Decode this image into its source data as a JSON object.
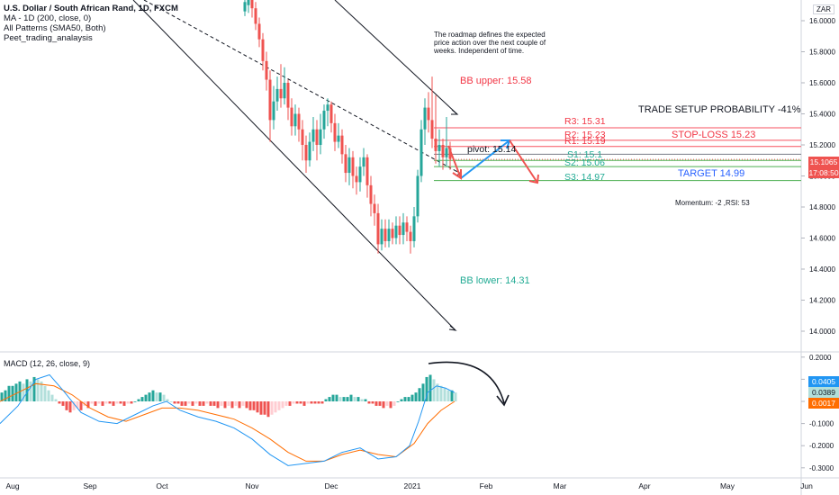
{
  "header": {
    "symbol": "U.S. Dollar / South African Rand, 1D, FXCM",
    "studies": [
      "MA - 1D (200, close, 0)",
      "All Patterns (SMA50, Both)",
      "Peet_trading_analaysis"
    ]
  },
  "currency_badge": "ZAR",
  "note": "The roadmap defines the expected price action over the next couple of weeks. Independent of time.",
  "annotations": {
    "bb_upper": "BB upper: 15.58",
    "bb_lower": "BB lower: 14.31",
    "trade_setup": "TRADE SETUP PROBABILITY -41%",
    "r3": "R3: 15.31",
    "r2": "R2: 15.23",
    "r1": "R1: 15.19",
    "stop_loss": "STOP-LOSS 15.23",
    "pivot": "pivot: 15.14",
    "s1": "S1: 15.1",
    "s2": "S2: 15.06",
    "s3": "S3: 14.97",
    "target": "TARGET 14.99",
    "momentum": "Momentum: -2 ,RSI: 53"
  },
  "price_badges": {
    "last": "15.1065",
    "countdown": "17:08:50"
  },
  "macd": {
    "title": "MACD (12, 26, close, 9)",
    "badges": [
      "0.0405",
      "0.0389",
      "0.0017"
    ]
  },
  "colors": {
    "up": "#26a69a",
    "down": "#ef5350",
    "up_light": "#b2dfdb",
    "down_light": "#ffcdd2",
    "macd_line": "#2196f3",
    "signal_line": "#ff6d00",
    "red_text": "#f23645",
    "green_text": "#22ab94",
    "blue_text": "#2962ff",
    "line_red": "#f7525f",
    "line_green": "#4caf50"
  },
  "chart_data": {
    "type": "candlestick",
    "price_axis": {
      "ticks": [
        "16.0000",
        "15.8000",
        "15.6000",
        "15.4000",
        "15.2000",
        "15.0000",
        "14.8000",
        "14.6000",
        "14.4000",
        "14.2000",
        "14.0000"
      ]
    },
    "time_axis": {
      "ticks": [
        "Aug",
        "Sep",
        "Oct",
        "Nov",
        "Dec",
        "2021",
        "Feb",
        "Mar",
        "Apr",
        "May",
        "Jun"
      ]
    },
    "macd_axis": {
      "ticks": [
        "0.2000",
        "0.1000",
        "0.0000",
        "-0.1000",
        "-0.2000",
        "-0.3000"
      ]
    },
    "levels": [
      {
        "name": "R3",
        "price": 15.31
      },
      {
        "name": "R2",
        "price": 15.23
      },
      {
        "name": "R1",
        "price": 15.19
      },
      {
        "name": "pivot",
        "price": 15.14
      },
      {
        "name": "S1",
        "price": 15.1
      },
      {
        "name": "S2",
        "price": 15.06
      },
      {
        "name": "S3",
        "price": 14.97
      }
    ],
    "candles": [
      {
        "x": 272,
        "o": 16.06,
        "c": 16.12,
        "h": 16.15,
        "l": 16.03
      },
      {
        "x": 276,
        "o": 16.1,
        "c": 16.14,
        "h": 16.18,
        "l": 16.05
      },
      {
        "x": 280,
        "o": 16.14,
        "c": 16.08,
        "h": 16.2,
        "l": 16.02
      },
      {
        "x": 284,
        "o": 16.08,
        "c": 15.98,
        "h": 16.12,
        "l": 15.94
      },
      {
        "x": 288,
        "o": 15.98,
        "c": 15.88,
        "h": 16.02,
        "l": 15.83
      },
      {
        "x": 292,
        "o": 15.88,
        "c": 15.74,
        "h": 15.92,
        "l": 15.68
      },
      {
        "x": 296,
        "o": 15.74,
        "c": 15.62,
        "h": 15.8,
        "l": 15.55
      },
      {
        "x": 300,
        "o": 15.62,
        "c": 15.36,
        "h": 15.68,
        "l": 15.22
      },
      {
        "x": 304,
        "o": 15.36,
        "c": 15.48,
        "h": 15.58,
        "l": 15.3
      },
      {
        "x": 308,
        "o": 15.48,
        "c": 15.56,
        "h": 15.64,
        "l": 15.42
      },
      {
        "x": 312,
        "o": 15.56,
        "c": 15.5,
        "h": 15.72,
        "l": 15.44
      },
      {
        "x": 316,
        "o": 15.5,
        "c": 15.6,
        "h": 15.7,
        "l": 15.46
      },
      {
        "x": 320,
        "o": 15.6,
        "c": 15.44,
        "h": 15.62,
        "l": 15.36
      },
      {
        "x": 324,
        "o": 15.44,
        "c": 15.32,
        "h": 15.5,
        "l": 15.26
      },
      {
        "x": 328,
        "o": 15.32,
        "c": 15.4,
        "h": 15.46,
        "l": 15.26
      },
      {
        "x": 332,
        "o": 15.4,
        "c": 15.3,
        "h": 15.44,
        "l": 15.22
      },
      {
        "x": 336,
        "o": 15.3,
        "c": 15.2,
        "h": 15.36,
        "l": 15.1
      },
      {
        "x": 340,
        "o": 15.2,
        "c": 15.1,
        "h": 15.26,
        "l": 15.02
      },
      {
        "x": 344,
        "o": 15.1,
        "c": 15.22,
        "h": 15.28,
        "l": 15.06
      },
      {
        "x": 348,
        "o": 15.22,
        "c": 15.3,
        "h": 15.38,
        "l": 15.16
      },
      {
        "x": 352,
        "o": 15.3,
        "c": 15.2,
        "h": 15.36,
        "l": 15.1
      },
      {
        "x": 356,
        "o": 15.2,
        "c": 15.3,
        "h": 15.4,
        "l": 15.14
      },
      {
        "x": 360,
        "o": 15.3,
        "c": 15.42,
        "h": 15.46,
        "l": 15.24
      },
      {
        "x": 364,
        "o": 15.42,
        "c": 15.46,
        "h": 15.5,
        "l": 15.32
      },
      {
        "x": 368,
        "o": 15.46,
        "c": 15.34,
        "h": 15.48,
        "l": 15.28
      },
      {
        "x": 372,
        "o": 15.34,
        "c": 15.22,
        "h": 15.4,
        "l": 15.16
      },
      {
        "x": 376,
        "o": 15.22,
        "c": 15.26,
        "h": 15.34,
        "l": 15.18
      },
      {
        "x": 380,
        "o": 15.26,
        "c": 15.14,
        "h": 15.3,
        "l": 15.08
      },
      {
        "x": 384,
        "o": 15.14,
        "c": 15.02,
        "h": 15.2,
        "l": 14.96
      },
      {
        "x": 388,
        "o": 15.02,
        "c": 15.12,
        "h": 15.18,
        "l": 14.94
      },
      {
        "x": 392,
        "o": 15.12,
        "c": 15.0,
        "h": 15.16,
        "l": 14.92
      },
      {
        "x": 396,
        "o": 15.0,
        "c": 14.96,
        "h": 15.06,
        "l": 14.88
      },
      {
        "x": 400,
        "o": 14.96,
        "c": 15.06,
        "h": 15.12,
        "l": 14.9
      },
      {
        "x": 404,
        "o": 15.06,
        "c": 15.12,
        "h": 15.18,
        "l": 15.0
      },
      {
        "x": 408,
        "o": 15.12,
        "c": 14.94,
        "h": 15.14,
        "l": 14.86
      },
      {
        "x": 412,
        "o": 14.94,
        "c": 14.82,
        "h": 15.0,
        "l": 14.74
      },
      {
        "x": 416,
        "o": 14.82,
        "c": 14.76,
        "h": 14.88,
        "l": 14.68
      },
      {
        "x": 420,
        "o": 14.76,
        "c": 14.56,
        "h": 14.82,
        "l": 14.5
      },
      {
        "x": 424,
        "o": 14.56,
        "c": 14.66,
        "h": 14.72,
        "l": 14.52
      },
      {
        "x": 428,
        "o": 14.66,
        "c": 14.58,
        "h": 14.72,
        "l": 14.54
      },
      {
        "x": 432,
        "o": 14.58,
        "c": 14.66,
        "h": 14.72,
        "l": 14.54
      },
      {
        "x": 436,
        "o": 14.66,
        "c": 14.6,
        "h": 14.7,
        "l": 14.56
      },
      {
        "x": 440,
        "o": 14.6,
        "c": 14.68,
        "h": 14.74,
        "l": 14.56
      },
      {
        "x": 444,
        "o": 14.68,
        "c": 14.62,
        "h": 14.74,
        "l": 14.56
      },
      {
        "x": 448,
        "o": 14.62,
        "c": 14.7,
        "h": 14.76,
        "l": 14.56
      },
      {
        "x": 452,
        "o": 14.7,
        "c": 14.64,
        "h": 14.74,
        "l": 14.58
      },
      {
        "x": 456,
        "o": 14.64,
        "c": 14.58,
        "h": 14.68,
        "l": 14.5
      },
      {
        "x": 460,
        "o": 14.58,
        "c": 14.74,
        "h": 14.8,
        "l": 14.54
      },
      {
        "x": 464,
        "o": 14.74,
        "c": 15.0,
        "h": 15.04,
        "l": 14.7
      },
      {
        "x": 468,
        "o": 15.0,
        "c": 15.3,
        "h": 15.36,
        "l": 14.96
      },
      {
        "x": 472,
        "o": 15.3,
        "c": 15.44,
        "h": 15.5,
        "l": 15.2
      },
      {
        "x": 476,
        "o": 15.44,
        "c": 15.36,
        "h": 15.54,
        "l": 15.28
      },
      {
        "x": 480,
        "o": 15.36,
        "c": 15.24,
        "h": 15.64,
        "l": 15.18
      },
      {
        "x": 484,
        "o": 15.24,
        "c": 15.16,
        "h": 15.52,
        "l": 15.08
      },
      {
        "x": 488,
        "o": 15.16,
        "c": 15.2,
        "h": 15.3,
        "l": 15.06
      },
      {
        "x": 492,
        "o": 15.2,
        "c": 15.12,
        "h": 15.24,
        "l": 15.04
      },
      {
        "x": 496,
        "o": 15.12,
        "c": 15.18,
        "h": 15.38,
        "l": 15.06
      },
      {
        "x": 500,
        "o": 15.18,
        "c": 15.11,
        "h": 15.22,
        "l": 15.04
      }
    ],
    "macd_hist": [
      {
        "x": 2,
        "v": 0.04
      },
      {
        "x": 6,
        "v": 0.05
      },
      {
        "x": 10,
        "v": 0.07
      },
      {
        "x": 14,
        "v": 0.07
      },
      {
        "x": 18,
        "v": 0.08
      },
      {
        "x": 22,
        "v": 0.09
      },
      {
        "x": 26,
        "v": 0.08
      },
      {
        "x": 30,
        "v": 0.1
      },
      {
        "x": 34,
        "v": 0.09
      },
      {
        "x": 38,
        "v": 0.11
      },
      {
        "x": 42,
        "v": 0.1
      },
      {
        "x": 46,
        "v": 0.09
      },
      {
        "x": 50,
        "v": 0.07
      },
      {
        "x": 54,
        "v": 0.05
      },
      {
        "x": 58,
        "v": 0.03
      },
      {
        "x": 62,
        "v": 0.01
      },
      {
        "x": 66,
        "v": -0.01
      },
      {
        "x": 70,
        "v": -0.02
      },
      {
        "x": 74,
        "v": -0.04
      },
      {
        "x": 78,
        "v": -0.05
      },
      {
        "x": 82,
        "v": -0.04
      },
      {
        "x": 86,
        "v": -0.03
      },
      {
        "x": 90,
        "v": -0.04
      },
      {
        "x": 94,
        "v": -0.02
      },
      {
        "x": 98,
        "v": -0.03
      },
      {
        "x": 102,
        "v": -0.01
      },
      {
        "x": 106,
        "v": -0.02
      },
      {
        "x": 110,
        "v": -0.01
      },
      {
        "x": 114,
        "v": -0.02
      },
      {
        "x": 118,
        "v": -0.01
      },
      {
        "x": 122,
        "v": -0.01
      },
      {
        "x": 126,
        "v": -0.02
      },
      {
        "x": 130,
        "v": -0.01
      },
      {
        "x": 134,
        "v": -0.01
      },
      {
        "x": 138,
        "v": -0.02
      },
      {
        "x": 142,
        "v": -0.01
      },
      {
        "x": 146,
        "v": -0.01
      },
      {
        "x": 150,
        "v": 0.0
      },
      {
        "x": 154,
        "v": 0.01
      },
      {
        "x": 158,
        "v": 0.02
      },
      {
        "x": 162,
        "v": 0.03
      },
      {
        "x": 166,
        "v": 0.04
      },
      {
        "x": 170,
        "v": 0.05
      },
      {
        "x": 174,
        "v": 0.04
      },
      {
        "x": 178,
        "v": 0.04
      },
      {
        "x": 182,
        "v": 0.03
      },
      {
        "x": 186,
        "v": 0.01
      },
      {
        "x": 190,
        "v": 0.0
      },
      {
        "x": 194,
        "v": -0.01
      },
      {
        "x": 198,
        "v": -0.01
      },
      {
        "x": 202,
        "v": -0.02
      },
      {
        "x": 206,
        "v": -0.02
      },
      {
        "x": 210,
        "v": -0.01
      },
      {
        "x": 214,
        "v": -0.02
      },
      {
        "x": 218,
        "v": -0.01
      },
      {
        "x": 222,
        "v": -0.02
      },
      {
        "x": 226,
        "v": -0.02
      },
      {
        "x": 230,
        "v": -0.01
      },
      {
        "x": 234,
        "v": -0.02
      },
      {
        "x": 238,
        "v": -0.02
      },
      {
        "x": 242,
        "v": -0.03
      },
      {
        "x": 246,
        "v": -0.02
      },
      {
        "x": 250,
        "v": -0.03
      },
      {
        "x": 254,
        "v": -0.02
      },
      {
        "x": 258,
        "v": -0.03
      },
      {
        "x": 262,
        "v": -0.02
      },
      {
        "x": 266,
        "v": -0.03
      },
      {
        "x": 270,
        "v": -0.02
      },
      {
        "x": 274,
        "v": -0.03
      },
      {
        "x": 278,
        "v": -0.04
      },
      {
        "x": 282,
        "v": -0.04
      },
      {
        "x": 286,
        "v": -0.05
      },
      {
        "x": 290,
        "v": -0.06
      },
      {
        "x": 294,
        "v": -0.06
      },
      {
        "x": 298,
        "v": -0.07
      },
      {
        "x": 302,
        "v": -0.06
      },
      {
        "x": 306,
        "v": -0.05
      },
      {
        "x": 310,
        "v": -0.04
      },
      {
        "x": 314,
        "v": -0.03
      },
      {
        "x": 318,
        "v": -0.02
      },
      {
        "x": 322,
        "v": -0.02
      },
      {
        "x": 326,
        "v": -0.01
      },
      {
        "x": 330,
        "v": -0.01
      },
      {
        "x": 334,
        "v": -0.01
      },
      {
        "x": 338,
        "v": -0.02
      },
      {
        "x": 342,
        "v": -0.01
      },
      {
        "x": 346,
        "v": -0.01
      },
      {
        "x": 350,
        "v": -0.01
      },
      {
        "x": 354,
        "v": -0.01
      },
      {
        "x": 358,
        "v": -0.01
      },
      {
        "x": 362,
        "v": 0.01
      },
      {
        "x": 366,
        "v": 0.02
      },
      {
        "x": 370,
        "v": 0.03
      },
      {
        "x": 374,
        "v": 0.03
      },
      {
        "x": 378,
        "v": 0.02
      },
      {
        "x": 382,
        "v": 0.02
      },
      {
        "x": 386,
        "v": 0.02
      },
      {
        "x": 390,
        "v": 0.03
      },
      {
        "x": 394,
        "v": 0.02
      },
      {
        "x": 398,
        "v": 0.02
      },
      {
        "x": 402,
        "v": 0.01
      },
      {
        "x": 406,
        "v": 0.01
      },
      {
        "x": 410,
        "v": -0.01
      },
      {
        "x": 414,
        "v": -0.01
      },
      {
        "x": 418,
        "v": -0.02
      },
      {
        "x": 422,
        "v": -0.02
      },
      {
        "x": 426,
        "v": -0.03
      },
      {
        "x": 430,
        "v": -0.02
      },
      {
        "x": 434,
        "v": -0.03
      },
      {
        "x": 438,
        "v": -0.02
      },
      {
        "x": 442,
        "v": 0.0
      },
      {
        "x": 446,
        "v": 0.01
      },
      {
        "x": 450,
        "v": 0.02
      },
      {
        "x": 454,
        "v": 0.02
      },
      {
        "x": 458,
        "v": 0.03
      },
      {
        "x": 462,
        "v": 0.04
      },
      {
        "x": 466,
        "v": 0.06
      },
      {
        "x": 470,
        "v": 0.08
      },
      {
        "x": 474,
        "v": 0.11
      },
      {
        "x": 478,
        "v": 0.12
      },
      {
        "x": 482,
        "v": 0.1
      },
      {
        "x": 486,
        "v": 0.08
      },
      {
        "x": 490,
        "v": 0.07
      },
      {
        "x": 494,
        "v": 0.06
      },
      {
        "x": 498,
        "v": 0.05
      },
      {
        "x": 502,
        "v": 0.05
      },
      {
        "x": 506,
        "v": 0.04
      }
    ],
    "macd_line": [
      [
        0,
        -0.1
      ],
      [
        20,
        -0.02
      ],
      [
        40,
        0.1
      ],
      [
        55,
        0.12
      ],
      [
        70,
        0.05
      ],
      [
        90,
        -0.05
      ],
      [
        110,
        -0.09
      ],
      [
        130,
        -0.1
      ],
      [
        150,
        -0.06
      ],
      [
        170,
        -0.02
      ],
      [
        185,
        0.0
      ],
      [
        200,
        -0.04
      ],
      [
        220,
        -0.07
      ],
      [
        240,
        -0.09
      ],
      [
        260,
        -0.12
      ],
      [
        280,
        -0.17
      ],
      [
        300,
        -0.24
      ],
      [
        320,
        -0.29
      ],
      [
        340,
        -0.28
      ],
      [
        360,
        -0.27
      ],
      [
        380,
        -0.23
      ],
      [
        400,
        -0.21
      ],
      [
        420,
        -0.26
      ],
      [
        440,
        -0.25
      ],
      [
        455,
        -0.2
      ],
      [
        465,
        -0.09
      ],
      [
        475,
        0.04
      ],
      [
        485,
        0.07
      ],
      [
        495,
        0.06
      ],
      [
        505,
        0.04
      ]
    ],
    "signal_line": [
      [
        0,
        0.0
      ],
      [
        20,
        0.04
      ],
      [
        40,
        0.08
      ],
      [
        60,
        0.07
      ],
      [
        80,
        0.03
      ],
      [
        100,
        -0.03
      ],
      [
        120,
        -0.07
      ],
      [
        140,
        -0.09
      ],
      [
        160,
        -0.06
      ],
      [
        180,
        -0.03
      ],
      [
        200,
        -0.03
      ],
      [
        220,
        -0.04
      ],
      [
        240,
        -0.06
      ],
      [
        260,
        -0.08
      ],
      [
        280,
        -0.12
      ],
      [
        300,
        -0.17
      ],
      [
        320,
        -0.23
      ],
      [
        340,
        -0.27
      ],
      [
        360,
        -0.27
      ],
      [
        380,
        -0.24
      ],
      [
        400,
        -0.22
      ],
      [
        420,
        -0.24
      ],
      [
        440,
        -0.25
      ],
      [
        460,
        -0.19
      ],
      [
        475,
        -0.1
      ],
      [
        490,
        -0.04
      ],
      [
        505,
        0.0
      ]
    ]
  }
}
